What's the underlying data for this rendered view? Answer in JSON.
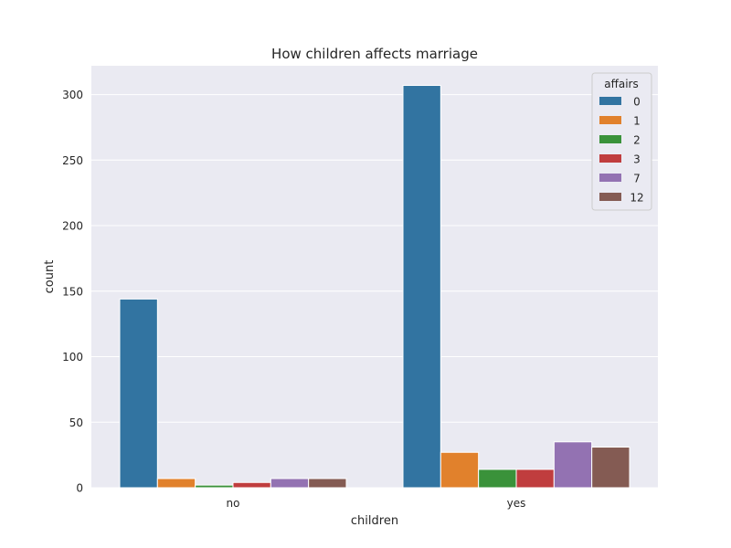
{
  "chart_data": {
    "type": "bar",
    "title": "How children affects marriage",
    "xlabel": "children",
    "ylabel": "count",
    "categories": [
      "no",
      "yes"
    ],
    "ylim": [
      0,
      322
    ],
    "yticks": [
      0,
      50,
      100,
      150,
      200,
      250,
      300
    ],
    "grid": true,
    "legend": {
      "title": "affairs",
      "placement": "top-right"
    },
    "series": [
      {
        "name": "0",
        "color": "#3274a1",
        "values": [
          144,
          307
        ]
      },
      {
        "name": "1",
        "color": "#e1812c",
        "values": [
          7,
          27
        ]
      },
      {
        "name": "2",
        "color": "#3a923a",
        "values": [
          2,
          14
        ]
      },
      {
        "name": "3",
        "color": "#c03d3e",
        "values": [
          4,
          14
        ]
      },
      {
        "name": "7",
        "color": "#9372b2",
        "values": [
          7,
          35
        ]
      },
      {
        "name": "12",
        "color": "#845b53",
        "values": [
          7,
          31
        ]
      }
    ]
  }
}
